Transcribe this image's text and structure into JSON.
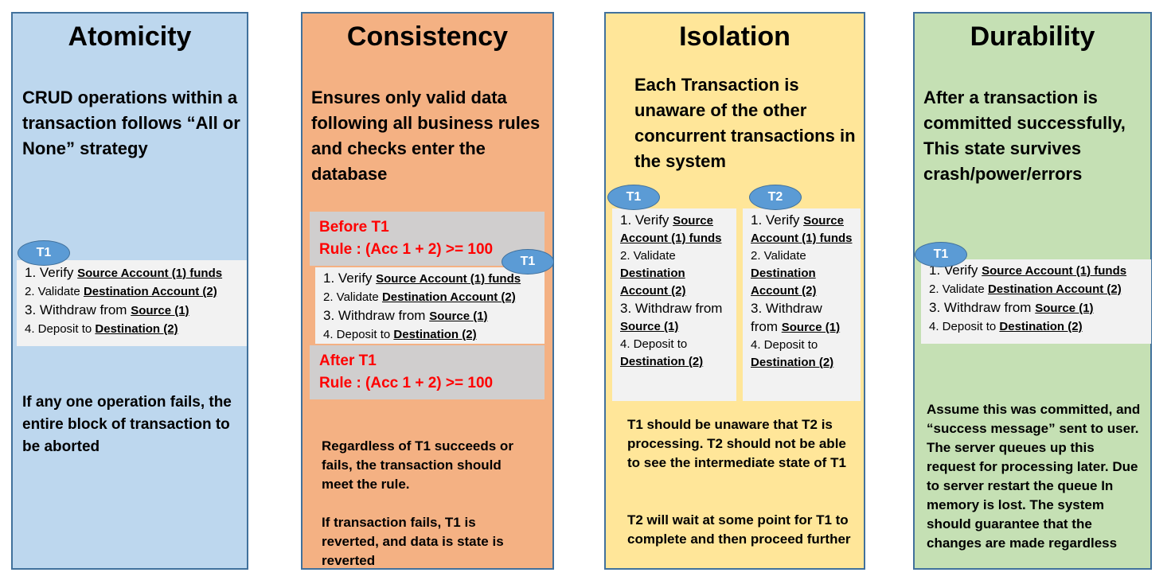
{
  "atomicity": {
    "title": "Atomicity",
    "description": "CRUD operations within a transaction follows “All or None” strategy",
    "badge": "T1",
    "steps": [
      {
        "pre": "1. Verify ",
        "u": "Source Account (1) funds"
      },
      {
        "pre": "2. Validate ",
        "u": "Destination Account (2)"
      },
      {
        "pre": "3. Withdraw from ",
        "u": "Source (1)"
      },
      {
        "pre": "4. Deposit to ",
        "u": "Destination (2)"
      }
    ],
    "note": "If any one operation fails, the entire block of transaction to be aborted"
  },
  "consistency": {
    "title": "Consistency",
    "description": "Ensures only valid data following all business rules and checks enter the database",
    "before_label": "Before T1",
    "before_rule": "Rule : (Acc 1 + 2) >= 100",
    "badge": "T1",
    "steps": [
      {
        "pre": "1. Verify ",
        "u": "Source Account (1) funds"
      },
      {
        "pre": "2. Validate ",
        "u": "Destination Account (2)"
      },
      {
        "pre": "3. Withdraw from ",
        "u": "Source (1)"
      },
      {
        "pre": "4. Deposit to ",
        "u": "Destination (2)"
      }
    ],
    "after_label": "After  T1",
    "after_rule": "Rule : (Acc 1 + 2) >= 100",
    "note1": "Regardless of T1 succeeds or fails, the transaction should meet the rule.",
    "note2": "If transaction fails, T1 is reverted, and data is state is reverted"
  },
  "isolation": {
    "title": "Isolation",
    "description": "Each Transaction is unaware of the other concurrent transactions in the system",
    "t1": {
      "badge": "T1",
      "steps": [
        {
          "pre": "1. Verify ",
          "u": "Source Account (1) funds"
        },
        {
          "pre": "2. Validate ",
          "u": "Destination Account (2)"
        },
        {
          "pre": "3. Withdraw from ",
          "u": "Source (1)"
        },
        {
          "pre": "4. Deposit to ",
          "u": "Destination (2)"
        }
      ]
    },
    "t2": {
      "badge": "T2",
      "steps": [
        {
          "pre": "1. Verify ",
          "u": "Source Account (1) funds"
        },
        {
          "pre": "2. Validate ",
          "u": "Destination Account (2)"
        },
        {
          "pre": "3. Withdraw from ",
          "u": "Source (1)"
        },
        {
          "pre": "4. Deposit to ",
          "u": "Destination (2)"
        }
      ]
    },
    "note1": "T1 should be unaware that T2 is processing.  T2 should not be able to see the  intermediate state of T1",
    "note2": "T2 will wait at some point for T1 to complete and then proceed further"
  },
  "durability": {
    "title": "Durability",
    "description": "After a transaction is committed successfully, This state survives crash/power/errors",
    "badge": "T1",
    "steps": [
      {
        "pre": "1. Verify ",
        "u": "Source Account (1) funds"
      },
      {
        "pre": "2. Validate ",
        "u": "Destination Account (2)"
      },
      {
        "pre": "3. Withdraw from ",
        "u": "Source (1)"
      },
      {
        "pre": "4. Deposit to ",
        "u": "Destination (2)"
      }
    ],
    "note": "Assume this was committed, and “success message” sent to user. The server queues up this request for processing later. Due to server restart the queue In memory is lost. The system should guarantee that the changes are made regardless"
  },
  "colors": {
    "atomicity_bg": "#bdd7ee",
    "consistency_bg": "#f4b183",
    "isolation_bg": "#ffe699",
    "durability_bg": "#c5e0b4",
    "border": "#41719c",
    "badge": "#5b9bd5",
    "rule_text": "#ff0000",
    "rule_bg": "#d0cece",
    "steps_bg": "#f2f2f2"
  }
}
